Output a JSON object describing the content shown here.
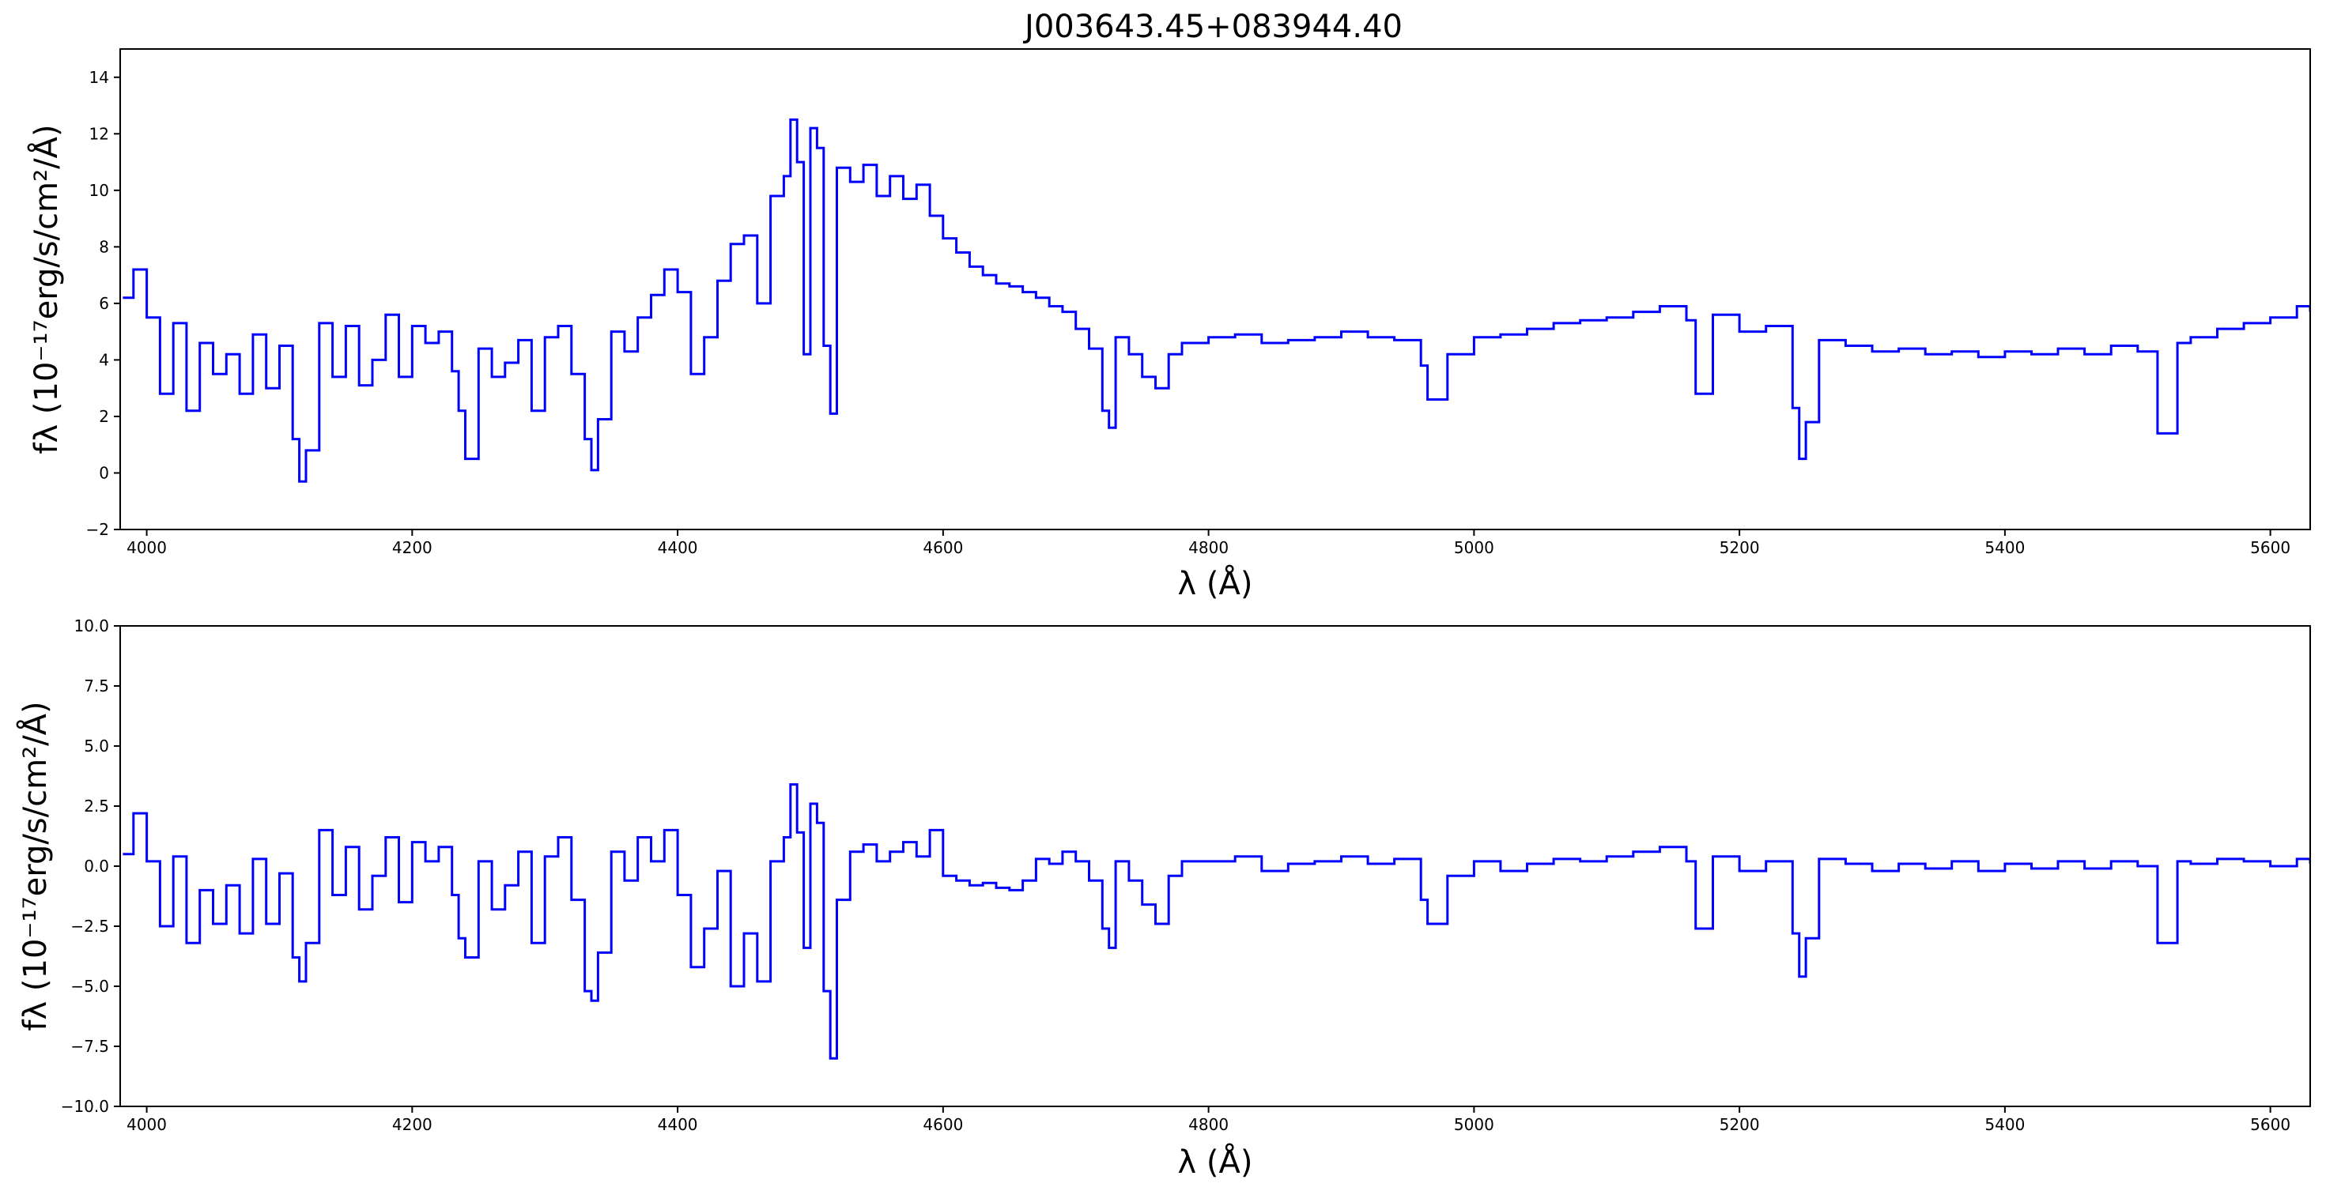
{
  "figure": {
    "title": "J003643.45+083944.40"
  },
  "chart_data": [
    {
      "type": "line",
      "panel": "top",
      "title": "J003643.45+083944.40",
      "xlabel": "λ (Å)",
      "ylabel": "fλ (10⁻¹⁷erg/s/cm²/Å)",
      "xlim": [
        3980,
        5630
      ],
      "ylim": [
        -2,
        15
      ],
      "xticks": [
        4000,
        4200,
        4400,
        4600,
        4800,
        5000,
        5200,
        5400,
        5600
      ],
      "yticks": [
        -2,
        0,
        2,
        4,
        6,
        8,
        10,
        12,
        14
      ],
      "grid": false,
      "color": "#0000ff",
      "series": [
        {
          "x": [
            3982,
            3990,
            4000,
            4010,
            4020,
            4030,
            4040,
            4050,
            4060,
            4070,
            4080,
            4090,
            4100,
            4110,
            4115,
            4120,
            4130,
            4140,
            4150,
            4160,
            4170,
            4180,
            4190,
            4200,
            4210,
            4220,
            4230,
            4235,
            4240,
            4250,
            4260,
            4270,
            4280,
            4290,
            4300,
            4310,
            4320,
            4330,
            4335,
            4340,
            4350,
            4360,
            4370,
            4380,
            4390,
            4400,
            4410,
            4420,
            4430,
            4440,
            4450,
            4460,
            4470,
            4480,
            4485,
            4490,
            4495,
            4500,
            4505,
            4510,
            4515,
            4520,
            4530,
            4540,
            4550,
            4560,
            4570,
            4580,
            4590,
            4600,
            4610,
            4620,
            4630,
            4640,
            4650,
            4660,
            4670,
            4680,
            4690,
            4700,
            4710,
            4720,
            4725,
            4730,
            4740,
            4750,
            4760,
            4770,
            4780,
            4800,
            4820,
            4840,
            4860,
            4880,
            4900,
            4920,
            4940,
            4960,
            4965,
            4980,
            5000,
            5020,
            5040,
            5060,
            5080,
            5100,
            5120,
            5140,
            5160,
            5167,
            5180,
            5200,
            5220,
            5240,
            5245,
            5250,
            5260,
            5280,
            5300,
            5320,
            5340,
            5360,
            5380,
            5400,
            5420,
            5440,
            5460,
            5480,
            5500,
            5515,
            5530,
            5540,
            5560,
            5580,
            5600,
            5620,
            5630
          ],
          "y": [
            6.2,
            7.2,
            5.5,
            2.8,
            5.3,
            2.2,
            4.6,
            3.5,
            4.2,
            2.8,
            4.9,
            3.0,
            4.5,
            1.2,
            -0.3,
            0.8,
            5.3,
            3.4,
            5.2,
            3.1,
            4.0,
            5.6,
            3.4,
            5.2,
            4.6,
            5.0,
            3.6,
            2.2,
            0.5,
            4.4,
            3.4,
            3.9,
            4.7,
            2.2,
            4.8,
            5.2,
            3.5,
            1.2,
            0.1,
            1.9,
            5.0,
            4.3,
            5.5,
            6.3,
            7.2,
            6.4,
            3.5,
            4.8,
            6.8,
            8.1,
            8.4,
            6.0,
            9.8,
            10.5,
            12.5,
            11.0,
            4.2,
            12.2,
            11.5,
            4.5,
            2.1,
            10.8,
            10.3,
            10.9,
            9.8,
            10.5,
            9.7,
            10.2,
            9.1,
            8.3,
            7.8,
            7.3,
            7.0,
            6.7,
            6.6,
            6.4,
            6.2,
            5.9,
            5.7,
            5.1,
            4.4,
            2.2,
            1.6,
            4.8,
            4.2,
            3.4,
            3.0,
            4.2,
            4.6,
            4.8,
            4.9,
            4.6,
            4.7,
            4.8,
            5.0,
            4.8,
            4.7,
            3.8,
            2.6,
            4.2,
            4.8,
            4.9,
            5.1,
            5.3,
            5.4,
            5.5,
            5.7,
            5.9,
            5.4,
            2.8,
            5.6,
            5.0,
            5.2,
            2.3,
            0.5,
            1.8,
            4.7,
            4.5,
            4.3,
            4.4,
            4.2,
            4.3,
            4.1,
            4.3,
            4.2,
            4.4,
            4.2,
            4.5,
            4.3,
            1.4,
            4.6,
            4.8,
            5.1,
            5.3,
            5.5,
            5.9,
            5.7
          ]
        }
      ]
    },
    {
      "type": "line",
      "panel": "bottom",
      "xlabel": "λ (Å)",
      "ylabel": "fλ (10⁻¹⁷erg/s/cm²/Å)",
      "xlim": [
        3980,
        5630
      ],
      "ylim": [
        -10,
        10
      ],
      "xticks": [
        4000,
        4200,
        4400,
        4600,
        4800,
        5000,
        5200,
        5400,
        5600
      ],
      "yticks": [
        -10.0,
        -7.5,
        -5.0,
        -2.5,
        0.0,
        2.5,
        5.0,
        7.5,
        10.0
      ],
      "ytick_labels": [
        "−10.0",
        "−7.5",
        "−5.0",
        "−2.5",
        "0.0",
        "2.5",
        "5.0",
        "7.5",
        "10.0"
      ],
      "grid": false,
      "color": "#0000ff",
      "series": [
        {
          "x": [
            3982,
            3990,
            4000,
            4010,
            4020,
            4030,
            4040,
            4050,
            4060,
            4070,
            4080,
            4090,
            4100,
            4110,
            4115,
            4120,
            4130,
            4140,
            4150,
            4160,
            4170,
            4180,
            4190,
            4200,
            4210,
            4220,
            4230,
            4235,
            4240,
            4250,
            4260,
            4270,
            4280,
            4290,
            4300,
            4310,
            4320,
            4330,
            4335,
            4340,
            4350,
            4360,
            4370,
            4380,
            4390,
            4400,
            4410,
            4420,
            4430,
            4440,
            4450,
            4460,
            4470,
            4480,
            4485,
            4490,
            4495,
            4500,
            4505,
            4510,
            4515,
            4520,
            4530,
            4540,
            4550,
            4560,
            4570,
            4580,
            4590,
            4600,
            4610,
            4620,
            4630,
            4640,
            4650,
            4660,
            4670,
            4680,
            4690,
            4700,
            4710,
            4720,
            4725,
            4730,
            4740,
            4750,
            4760,
            4770,
            4780,
            4800,
            4820,
            4840,
            4860,
            4880,
            4900,
            4920,
            4940,
            4960,
            4965,
            4980,
            5000,
            5020,
            5040,
            5060,
            5080,
            5100,
            5120,
            5140,
            5160,
            5167,
            5180,
            5200,
            5220,
            5240,
            5245,
            5250,
            5260,
            5280,
            5300,
            5320,
            5340,
            5360,
            5380,
            5400,
            5420,
            5440,
            5460,
            5480,
            5500,
            5515,
            5530,
            5540,
            5560,
            5580,
            5600,
            5620,
            5630
          ],
          "y": [
            0.5,
            2.2,
            0.2,
            -2.5,
            0.4,
            -3.2,
            -1.0,
            -2.4,
            -0.8,
            -2.8,
            0.3,
            -2.4,
            -0.3,
            -3.8,
            -4.8,
            -3.2,
            1.5,
            -1.2,
            0.8,
            -1.8,
            -0.4,
            1.2,
            -1.5,
            1.0,
            0.2,
            0.8,
            -1.2,
            -3.0,
            -3.8,
            0.2,
            -1.8,
            -0.8,
            0.6,
            -3.2,
            0.4,
            1.2,
            -1.4,
            -5.2,
            -5.6,
            -3.6,
            0.6,
            -0.6,
            1.2,
            0.2,
            1.5,
            -1.2,
            -4.2,
            -2.6,
            -0.2,
            -5.0,
            -2.8,
            -4.8,
            0.2,
            1.2,
            3.4,
            1.4,
            -3.4,
            2.6,
            1.8,
            -5.2,
            -8.0,
            -1.4,
            0.6,
            0.9,
            0.2,
            0.6,
            1.0,
            0.4,
            1.5,
            -0.4,
            -0.6,
            -0.8,
            -0.7,
            -0.9,
            -1.0,
            -0.6,
            0.3,
            0.1,
            0.6,
            0.2,
            -0.6,
            -2.6,
            -3.4,
            0.2,
            -0.6,
            -1.6,
            -2.4,
            -0.4,
            0.2,
            0.2,
            0.4,
            -0.2,
            0.1,
            0.2,
            0.4,
            0.1,
            0.3,
            -1.4,
            -2.4,
            -0.4,
            0.2,
            -0.2,
            0.1,
            0.3,
            0.2,
            0.4,
            0.6,
            0.8,
            0.2,
            -2.6,
            0.4,
            -0.2,
            0.2,
            -2.8,
            -4.6,
            -3.0,
            0.3,
            0.1,
            -0.2,
            0.1,
            -0.1,
            0.2,
            -0.2,
            0.1,
            -0.1,
            0.2,
            -0.1,
            0.2,
            0.0,
            -3.2,
            0.2,
            0.1,
            0.3,
            0.2,
            0.0,
            0.3,
            0.1
          ]
        }
      ]
    }
  ]
}
